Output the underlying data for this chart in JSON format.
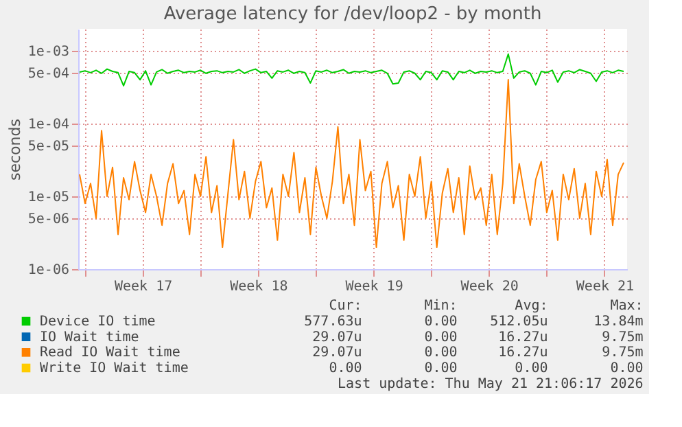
{
  "chart_data": {
    "type": "line",
    "title": "Average latency for /dev/loop2 - by month",
    "ylabel": "seconds",
    "log": "y",
    "grid": true,
    "legend": "bottom",
    "marker": "none",
    "line_style": "solid",
    "ylim": [
      1e-06,
      0.002
    ],
    "yticks": [
      {
        "value": 1e-06,
        "label": "1e-06"
      },
      {
        "value": 5e-06,
        "label": "5e-06"
      },
      {
        "value": 1e-05,
        "label": "1e-05"
      },
      {
        "value": 5e-05,
        "label": "5e-05"
      },
      {
        "value": 0.0001,
        "label": "1e-04"
      },
      {
        "value": 0.0005,
        "label": "5e-04"
      },
      {
        "value": 0.001,
        "label": "1e-03"
      }
    ],
    "xlim": [
      "2026-04-19T14:00",
      "2026-05-22T21:00"
    ],
    "xticks": [
      {
        "value": "2026-04-20",
        "label": null
      },
      {
        "value": "2026-04-23T12:00",
        "label": "Week 17"
      },
      {
        "value": "2026-04-27",
        "label": null
      },
      {
        "value": "2026-04-30T12:00",
        "label": "Week 18"
      },
      {
        "value": "2026-05-04",
        "label": null
      },
      {
        "value": "2026-05-07T12:00",
        "label": "Week 19"
      },
      {
        "value": "2026-05-11",
        "label": null
      },
      {
        "value": "2026-05-14T12:00",
        "label": "Week 20"
      },
      {
        "value": "2026-05-18",
        "label": null
      },
      {
        "value": "2026-05-21T12:00",
        "label": "Week 21"
      }
    ],
    "x": [
      "2026-04-19T16:00",
      "2026-04-20T00:00",
      "2026-04-20T08:00",
      "2026-04-20T16:00",
      "2026-04-21T00:00",
      "2026-04-21T08:00",
      "2026-04-21T16:00",
      "2026-04-22T00:00",
      "2026-04-22T08:00",
      "2026-04-22T16:00",
      "2026-04-23T00:00",
      "2026-04-23T08:00",
      "2026-04-23T16:00",
      "2026-04-24T00:00",
      "2026-04-24T08:00",
      "2026-04-24T16:00",
      "2026-04-25T00:00",
      "2026-04-25T08:00",
      "2026-04-25T16:00",
      "2026-04-26T00:00",
      "2026-04-26T08:00",
      "2026-04-26T16:00",
      "2026-04-27T00:00",
      "2026-04-27T08:00",
      "2026-04-27T16:00",
      "2026-04-28T00:00",
      "2026-04-28T08:00",
      "2026-04-28T16:00",
      "2026-04-29T00:00",
      "2026-04-29T08:00",
      "2026-04-29T16:00",
      "2026-04-30T00:00",
      "2026-04-30T08:00",
      "2026-04-30T16:00",
      "2026-05-01T00:00",
      "2026-05-01T08:00",
      "2026-05-01T16:00",
      "2026-05-02T00:00",
      "2026-05-02T08:00",
      "2026-05-02T16:00",
      "2026-05-03T00:00",
      "2026-05-03T08:00",
      "2026-05-03T16:00",
      "2026-05-04T00:00",
      "2026-05-04T08:00",
      "2026-05-04T16:00",
      "2026-05-05T00:00",
      "2026-05-05T08:00",
      "2026-05-05T16:00",
      "2026-05-06T00:00",
      "2026-05-06T08:00",
      "2026-05-06T16:00",
      "2026-05-07T00:00",
      "2026-05-07T08:00",
      "2026-05-07T16:00",
      "2026-05-08T00:00",
      "2026-05-08T08:00",
      "2026-05-08T16:00",
      "2026-05-09T00:00",
      "2026-05-09T08:00",
      "2026-05-09T16:00",
      "2026-05-10T00:00",
      "2026-05-10T08:00",
      "2026-05-10T16:00",
      "2026-05-11T00:00",
      "2026-05-11T08:00",
      "2026-05-11T16:00",
      "2026-05-12T00:00",
      "2026-05-12T08:00",
      "2026-05-12T16:00",
      "2026-05-13T00:00",
      "2026-05-13T08:00",
      "2026-05-13T16:00",
      "2026-05-14T00:00",
      "2026-05-14T08:00",
      "2026-05-14T16:00",
      "2026-05-15T00:00",
      "2026-05-15T08:00",
      "2026-05-15T16:00",
      "2026-05-16T00:00",
      "2026-05-16T08:00",
      "2026-05-16T16:00",
      "2026-05-17T00:00",
      "2026-05-17T08:00",
      "2026-05-17T16:00",
      "2026-05-18T00:00",
      "2026-05-18T08:00",
      "2026-05-18T16:00",
      "2026-05-19T00:00",
      "2026-05-19T08:00",
      "2026-05-19T16:00",
      "2026-05-20T00:00",
      "2026-05-20T08:00",
      "2026-05-20T16:00",
      "2026-05-21T00:00",
      "2026-05-21T08:00",
      "2026-05-21T16:00",
      "2026-05-22T00:00",
      "2026-05-22T08:00",
      "2026-05-22T16:00"
    ],
    "series": [
      {
        "name": "Device IO time",
        "color": "#00cc00",
        "values": [
          0.00051,
          0.00053,
          0.0005,
          0.00054,
          0.00049,
          0.00056,
          0.00052,
          0.0005,
          0.00033,
          0.00052,
          0.0005,
          0.0004,
          0.00053,
          0.00034,
          0.00051,
          0.00055,
          0.00049,
          0.00052,
          0.00054,
          0.0005,
          0.00052,
          0.00051,
          0.00054,
          0.00049,
          0.00052,
          0.00053,
          0.0005,
          0.00052,
          0.00051,
          0.00055,
          0.00049,
          0.00053,
          0.00056,
          0.0005,
          0.00052,
          0.00042,
          0.00053,
          0.00051,
          0.00054,
          0.00049,
          0.00052,
          0.0005,
          0.00036,
          0.00053,
          0.00051,
          0.00054,
          0.0005,
          0.00052,
          0.00055,
          0.00049,
          0.00052,
          0.00051,
          0.00053,
          0.0005,
          0.00052,
          0.00054,
          0.00049,
          0.00035,
          0.00036,
          0.00051,
          0.00053,
          0.00049,
          0.0004,
          0.00052,
          0.0005,
          0.0004,
          0.00053,
          0.00051,
          0.0004,
          0.00052,
          0.0005,
          0.00054,
          0.00049,
          0.00052,
          0.00051,
          0.00053,
          0.0005,
          0.00052,
          0.0009,
          0.00042,
          0.00051,
          0.00053,
          0.00049,
          0.00034,
          0.00052,
          0.0005,
          0.00054,
          0.00037,
          0.00051,
          0.00053,
          0.0005,
          0.00055,
          0.00052,
          0.00049,
          0.00038,
          0.00051,
          0.00053,
          0.0005,
          0.00054,
          0.00052
        ]
      },
      {
        "name": "IO Wait time",
        "color": "#0066b3",
        "values": [
          null,
          null,
          null,
          null,
          null,
          null,
          null,
          null,
          null,
          null,
          null,
          null,
          null,
          null,
          null,
          null,
          null,
          null,
          null,
          null,
          null,
          null,
          null,
          null,
          null,
          null,
          null,
          null,
          null,
          null,
          null,
          null,
          null,
          null,
          null,
          null,
          null,
          null,
          null,
          null,
          null,
          null,
          null,
          null,
          null,
          null,
          null,
          null,
          null,
          null,
          null,
          null,
          null,
          null,
          null,
          null,
          null,
          null,
          null,
          null,
          null,
          null,
          null,
          null,
          null,
          null,
          null,
          null,
          null,
          null,
          null,
          null,
          null,
          null,
          null,
          null,
          null,
          null,
          null,
          null,
          null,
          null,
          null,
          null,
          null,
          null,
          null,
          null,
          null,
          null,
          null,
          null,
          null,
          null,
          null,
          null,
          null,
          null,
          null,
          null
        ]
      },
      {
        "name": "Read IO Wait time",
        "color": "#ff8000",
        "values": [
          2e-05,
          8e-06,
          1.5e-05,
          5e-06,
          8e-05,
          1e-05,
          2.5e-05,
          3e-06,
          1.8e-05,
          9e-06,
          3e-05,
          1.2e-05,
          6e-06,
          2e-05,
          1e-05,
          4e-06,
          1.5e-05,
          2.8e-05,
          8e-06,
          1.2e-05,
          3e-06,
          2e-05,
          1e-05,
          3.5e-05,
          6e-06,
          1.4e-05,
          2e-06,
          1.1e-05,
          6e-05,
          9e-06,
          2.2e-05,
          5e-06,
          1.6e-05,
          3e-05,
          7e-06,
          1.3e-05,
          2.5e-06,
          2e-05,
          1e-05,
          4e-05,
          6e-06,
          1.8e-05,
          3e-06,
          2.5e-05,
          1e-05,
          5e-06,
          1.6e-05,
          9e-05,
          8e-06,
          2e-05,
          4e-06,
          6e-05,
          1.2e-05,
          2.2e-05,
          2e-06,
          1.5e-05,
          3e-05,
          7e-06,
          1.4e-05,
          2.5e-06,
          2e-05,
          1e-05,
          3.5e-05,
          5e-06,
          1.6e-05,
          2e-06,
          1.1e-05,
          2.4e-05,
          6e-06,
          1.8e-05,
          3e-06,
          2.6e-05,
          9e-06,
          1.3e-05,
          4e-06,
          2e-05,
          3e-06,
          1.5e-05,
          0.0004,
          8e-06,
          2.8e-05,
          1e-05,
          4e-06,
          1.7e-05,
          3e-05,
          6e-06,
          1.2e-05,
          2.5e-06,
          2e-05,
          9e-06,
          2.4e-05,
          5e-06,
          1.5e-05,
          3e-06,
          2.2e-05,
          1e-05,
          3.2e-05,
          4e-06,
          2e-05,
          2.9e-05
        ]
      },
      {
        "name": "Write IO Wait time",
        "color": "#ffcc00",
        "values": [
          null,
          null,
          null,
          null,
          null,
          null,
          null,
          null,
          null,
          null,
          null,
          null,
          null,
          null,
          null,
          null,
          null,
          null,
          null,
          null,
          null,
          null,
          null,
          null,
          null,
          null,
          null,
          null,
          null,
          null,
          null,
          null,
          null,
          null,
          null,
          null,
          null,
          null,
          null,
          null,
          null,
          null,
          null,
          null,
          null,
          null,
          null,
          null,
          null,
          null,
          null,
          null,
          null,
          null,
          null,
          null,
          null,
          null,
          null,
          null,
          null,
          null,
          null,
          null,
          null,
          null,
          null,
          null,
          null,
          null,
          null,
          null,
          null,
          null,
          null,
          null,
          null,
          null,
          null,
          null,
          null,
          null,
          null,
          null,
          null,
          null,
          null,
          null,
          null,
          null,
          null,
          null,
          null,
          null,
          null,
          null,
          null,
          null,
          null,
          null
        ]
      }
    ],
    "annotations": [
      "Cur:",
      "Min:",
      "Avg:",
      "Max:",
      "577.63u",
      "0.00",
      "512.05u",
      "13.84m",
      "29.07u",
      "0.00",
      "16.27u",
      "9.75m",
      "29.07u",
      "0.00",
      "16.27u",
      "9.75m",
      "0.00",
      "0.00",
      "0.00",
      "0.00",
      "Last update: Thu May 21 21:06:17 2026"
    ]
  }
}
